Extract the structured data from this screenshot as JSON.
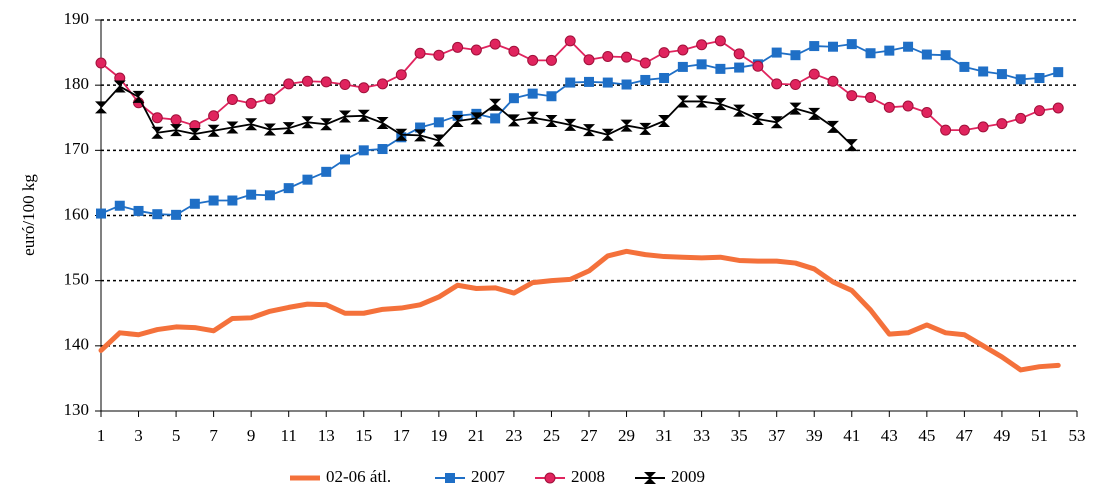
{
  "chart_data": {
    "type": "line",
    "y_label": "euró/100 kg",
    "x": [
      1,
      2,
      3,
      4,
      5,
      6,
      7,
      8,
      9,
      10,
      11,
      12,
      13,
      14,
      15,
      16,
      17,
      18,
      19,
      20,
      21,
      22,
      23,
      24,
      25,
      26,
      27,
      28,
      29,
      30,
      31,
      32,
      33,
      34,
      35,
      36,
      37,
      38,
      39,
      40,
      41,
      42,
      43,
      44,
      45,
      46,
      47,
      48,
      49,
      50,
      51,
      52
    ],
    "xlim": [
      1,
      53
    ],
    "xticks": [
      1,
      3,
      5,
      7,
      9,
      11,
      13,
      15,
      17,
      19,
      21,
      23,
      25,
      27,
      29,
      31,
      33,
      35,
      37,
      39,
      41,
      43,
      45,
      47,
      49,
      51,
      53
    ],
    "ylim": [
      130,
      190
    ],
    "yticks": [
      130,
      140,
      150,
      160,
      170,
      180,
      190
    ],
    "grid": true,
    "legend": "bottom",
    "series": [
      {
        "name": "02-06 átl.",
        "color": "#f4713b",
        "marker": "none",
        "values": [
          139.3,
          142,
          141.7,
          142.5,
          142.9,
          142.8,
          142.3,
          144.2,
          144.3,
          145.3,
          145.9,
          146.4,
          146.3,
          145,
          145,
          145.6,
          145.8,
          146.3,
          147.5,
          149.3,
          148.8,
          148.9,
          148.1,
          149.7,
          150,
          150.2,
          151.5,
          153.8,
          154.5,
          154,
          153.7,
          153.6,
          153.5,
          153.6,
          153.1,
          153,
          153,
          152.7,
          151.8,
          149.8,
          148.5,
          145.5,
          141.8,
          142,
          143.2,
          142,
          141.7,
          140,
          138.3,
          136.3,
          136.8,
          137
        ]
      },
      {
        "name": "2007",
        "color": "#1f6fc6",
        "marker": "square",
        "values": [
          160.3,
          161.5,
          160.7,
          160.2,
          160.1,
          161.8,
          162.3,
          162.3,
          163.2,
          163.1,
          164.2,
          165.5,
          166.7,
          168.6,
          170,
          170.2,
          172,
          173.5,
          174.3,
          175.3,
          175.6,
          174.9,
          178,
          178.7,
          178.3,
          180.4,
          180.5,
          180.4,
          180.1,
          180.8,
          181.1,
          182.8,
          183.2,
          182.5,
          182.7,
          183.2,
          185,
          184.6,
          186,
          185.9,
          186.3,
          184.9,
          185.3,
          185.9,
          184.7,
          184.6,
          182.8,
          182.1,
          181.7,
          180.9,
          181.1,
          182
        ]
      },
      {
        "name": "2008",
        "color": "#e0245e",
        "marker": "circle",
        "values": [
          183.4,
          181.1,
          177.3,
          175,
          174.7,
          173.8,
          175.3,
          177.8,
          177.2,
          177.9,
          180.2,
          180.6,
          180.5,
          180.1,
          179.6,
          180.2,
          181.6,
          184.9,
          184.6,
          185.8,
          185.4,
          186.3,
          185.2,
          183.8,
          183.8,
          186.8,
          183.9,
          184.4,
          184.3,
          183.4,
          185,
          185.4,
          186.2,
          186.8,
          184.8,
          182.9,
          180.2,
          180.1,
          181.7,
          180.6,
          178.4,
          178.1,
          176.6,
          176.8,
          175.8,
          173.1,
          173.1,
          173.6,
          174.1,
          174.9,
          176.1,
          176.5
        ]
      },
      {
        "name": "2009",
        "color": "#000000",
        "marker": "hourglass",
        "values": [
          176.6,
          179.8,
          178.2,
          172.7,
          173.1,
          172.5,
          173,
          173.5,
          174,
          173.2,
          173.4,
          174.3,
          174,
          175.2,
          175.3,
          174.2,
          172.4,
          172.3,
          171.5,
          174.5,
          174.9,
          177,
          174.6,
          175,
          174.5,
          173.9,
          173.1,
          172.4,
          173.8,
          173.3,
          174.5,
          177.5,
          177.5,
          177.1,
          176.1,
          174.8,
          174.3,
          176.4,
          175.6,
          173.6,
          170.8,
          null,
          null,
          null,
          null,
          null,
          null,
          null,
          null,
          null,
          null,
          null
        ]
      }
    ]
  }
}
